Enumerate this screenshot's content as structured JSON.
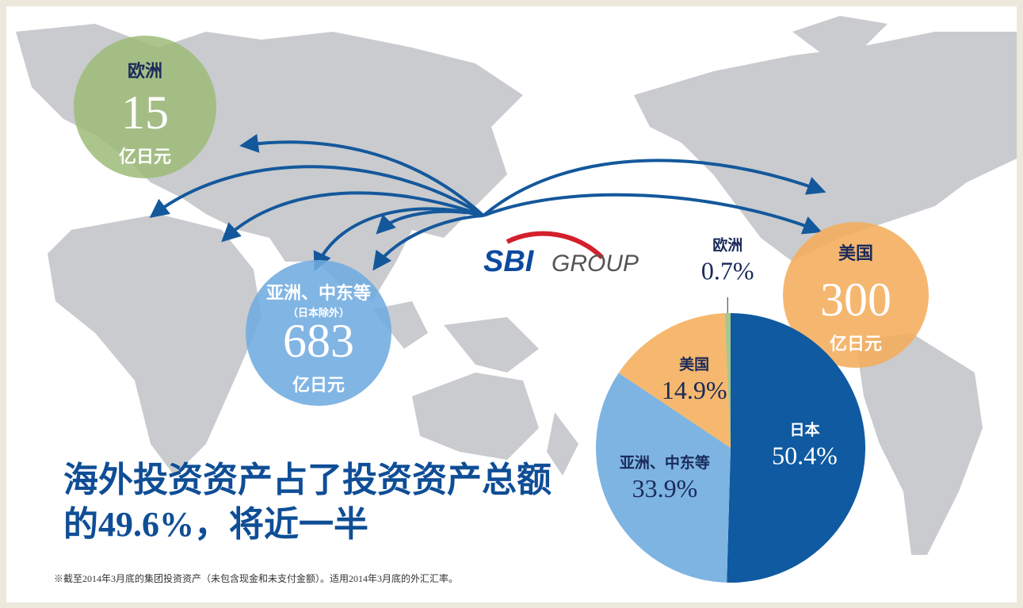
{
  "bubbles": [
    {
      "region": "欧洲",
      "amount": 15,
      "unit": "亿日元"
    },
    {
      "region": "亚洲、中东等",
      "note": "（日本除外）",
      "amount": 683,
      "unit": "亿日元"
    },
    {
      "region": "美国",
      "amount": 300,
      "unit": "亿日元"
    }
  ],
  "logo": {
    "mark": "SBI",
    "text": "GROUP"
  },
  "headline": [
    "海外投资资产占了投资资产总额",
    "的49.6%，将近一半"
  ],
  "footnote": "※截至2014年3月底的集团投资资产（未包含现金和未支付金额）。适用2014年3月底的外汇汇率。",
  "chart_data": {
    "type": "pie",
    "categories": [
      "日本",
      "亚洲、中东等",
      "美国",
      "欧洲"
    ],
    "values": [
      50.4,
      33.9,
      14.9,
      0.7
    ],
    "value_labels": [
      "50.4%",
      "33.9%",
      "14.9%",
      "0.7%"
    ],
    "colors": [
      "#0f5aa0",
      "#7db4e2",
      "#f5b86e",
      "#a9c68c"
    ]
  }
}
